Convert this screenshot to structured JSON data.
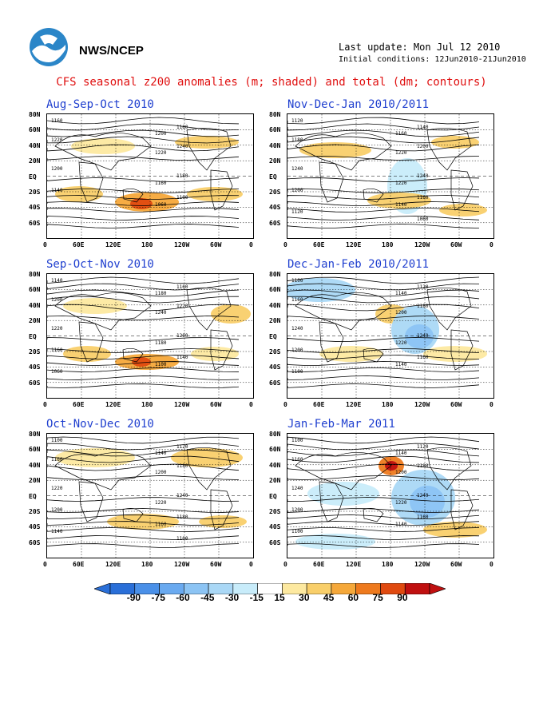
{
  "header": {
    "org": "NWS/NCEP",
    "last_update": "Last update: Mon Jul 12 2010",
    "initial_conditions": "Initial conditions: 12Jun2010-21Jun2010",
    "title": "CFS seasonal z200 anomalies (m; shaded) and total (dm; contours)"
  },
  "colors": {
    "title_red": "#e01010",
    "panel_title_blue": "#1f3fcf",
    "neg_90": "#2a6fd8",
    "neg_75": "#4a90e8",
    "neg_60": "#6aaaf0",
    "neg_45": "#8cc4f4",
    "neg_30": "#aad8f6",
    "neg_15": "#c8ecfa",
    "neutral": "#ffffff",
    "pos_15": "#fde9a0",
    "pos_30": "#f9cf6a",
    "pos_45": "#f5a83a",
    "pos_60": "#ee7a1e",
    "pos_75": "#e04a10",
    "pos_90": "#c01010"
  },
  "axes": {
    "y_ticks": [
      "80N",
      "60N",
      "40N",
      "20N",
      "EQ",
      "20S",
      "40S",
      "60S"
    ],
    "x_ticks": [
      "0",
      "60E",
      "120E",
      "180",
      "120W",
      "60W",
      "0"
    ]
  },
  "colorbar": {
    "labels": [
      "-90",
      "-75",
      "-60",
      "-45",
      "-30",
      "-15",
      "15",
      "30",
      "45",
      "60",
      "75",
      "90"
    ]
  },
  "chart_data": [
    {
      "type": "heatmap",
      "title": "Aug-Sep-Oct 2010",
      "contour_labels": [
        "1160",
        "1180",
        "1200",
        "1220",
        "1240",
        "1220",
        "1200",
        "1180",
        "1160",
        "1140",
        "1100",
        "1060"
      ]
    },
    {
      "type": "heatmap",
      "title": "Nov-Dec-Jan 2010/2011",
      "contour_labels": [
        "1120",
        "1140",
        "1160",
        "1180",
        "1200",
        "1220",
        "1240",
        "1240",
        "1220",
        "1200",
        "1160",
        "1140",
        "1120",
        "1060"
      ]
    },
    {
      "type": "heatmap",
      "title": "Sep-Oct-Nov 2010",
      "contour_labels": [
        "1140",
        "1160",
        "1180",
        "1200",
        "1220",
        "1240",
        "1220",
        "1200",
        "1180",
        "1160",
        "1140",
        "1100",
        "1060"
      ]
    },
    {
      "type": "heatmap",
      "title": "Dec-Jan-Feb 2010/2011",
      "contour_labels": [
        "1100",
        "1120",
        "1140",
        "1160",
        "1180",
        "1200",
        "1240",
        "1240",
        "1220",
        "1200",
        "1160",
        "1140",
        "1100"
      ]
    },
    {
      "type": "heatmap",
      "title": "Oct-Nov-Dec 2010",
      "contour_labels": [
        "1100",
        "1120",
        "1140",
        "1160",
        "1180",
        "1200",
        "1220",
        "1240",
        "1220",
        "1200",
        "1180",
        "1160",
        "1140",
        "1100"
      ]
    },
    {
      "type": "heatmap",
      "title": "Jan-Feb-Mar 2011",
      "contour_labels": [
        "1100",
        "1120",
        "1140",
        "1160",
        "1180",
        "1200",
        "1240",
        "1240",
        "1220",
        "1200",
        "1160",
        "1140",
        "1100"
      ]
    }
  ]
}
